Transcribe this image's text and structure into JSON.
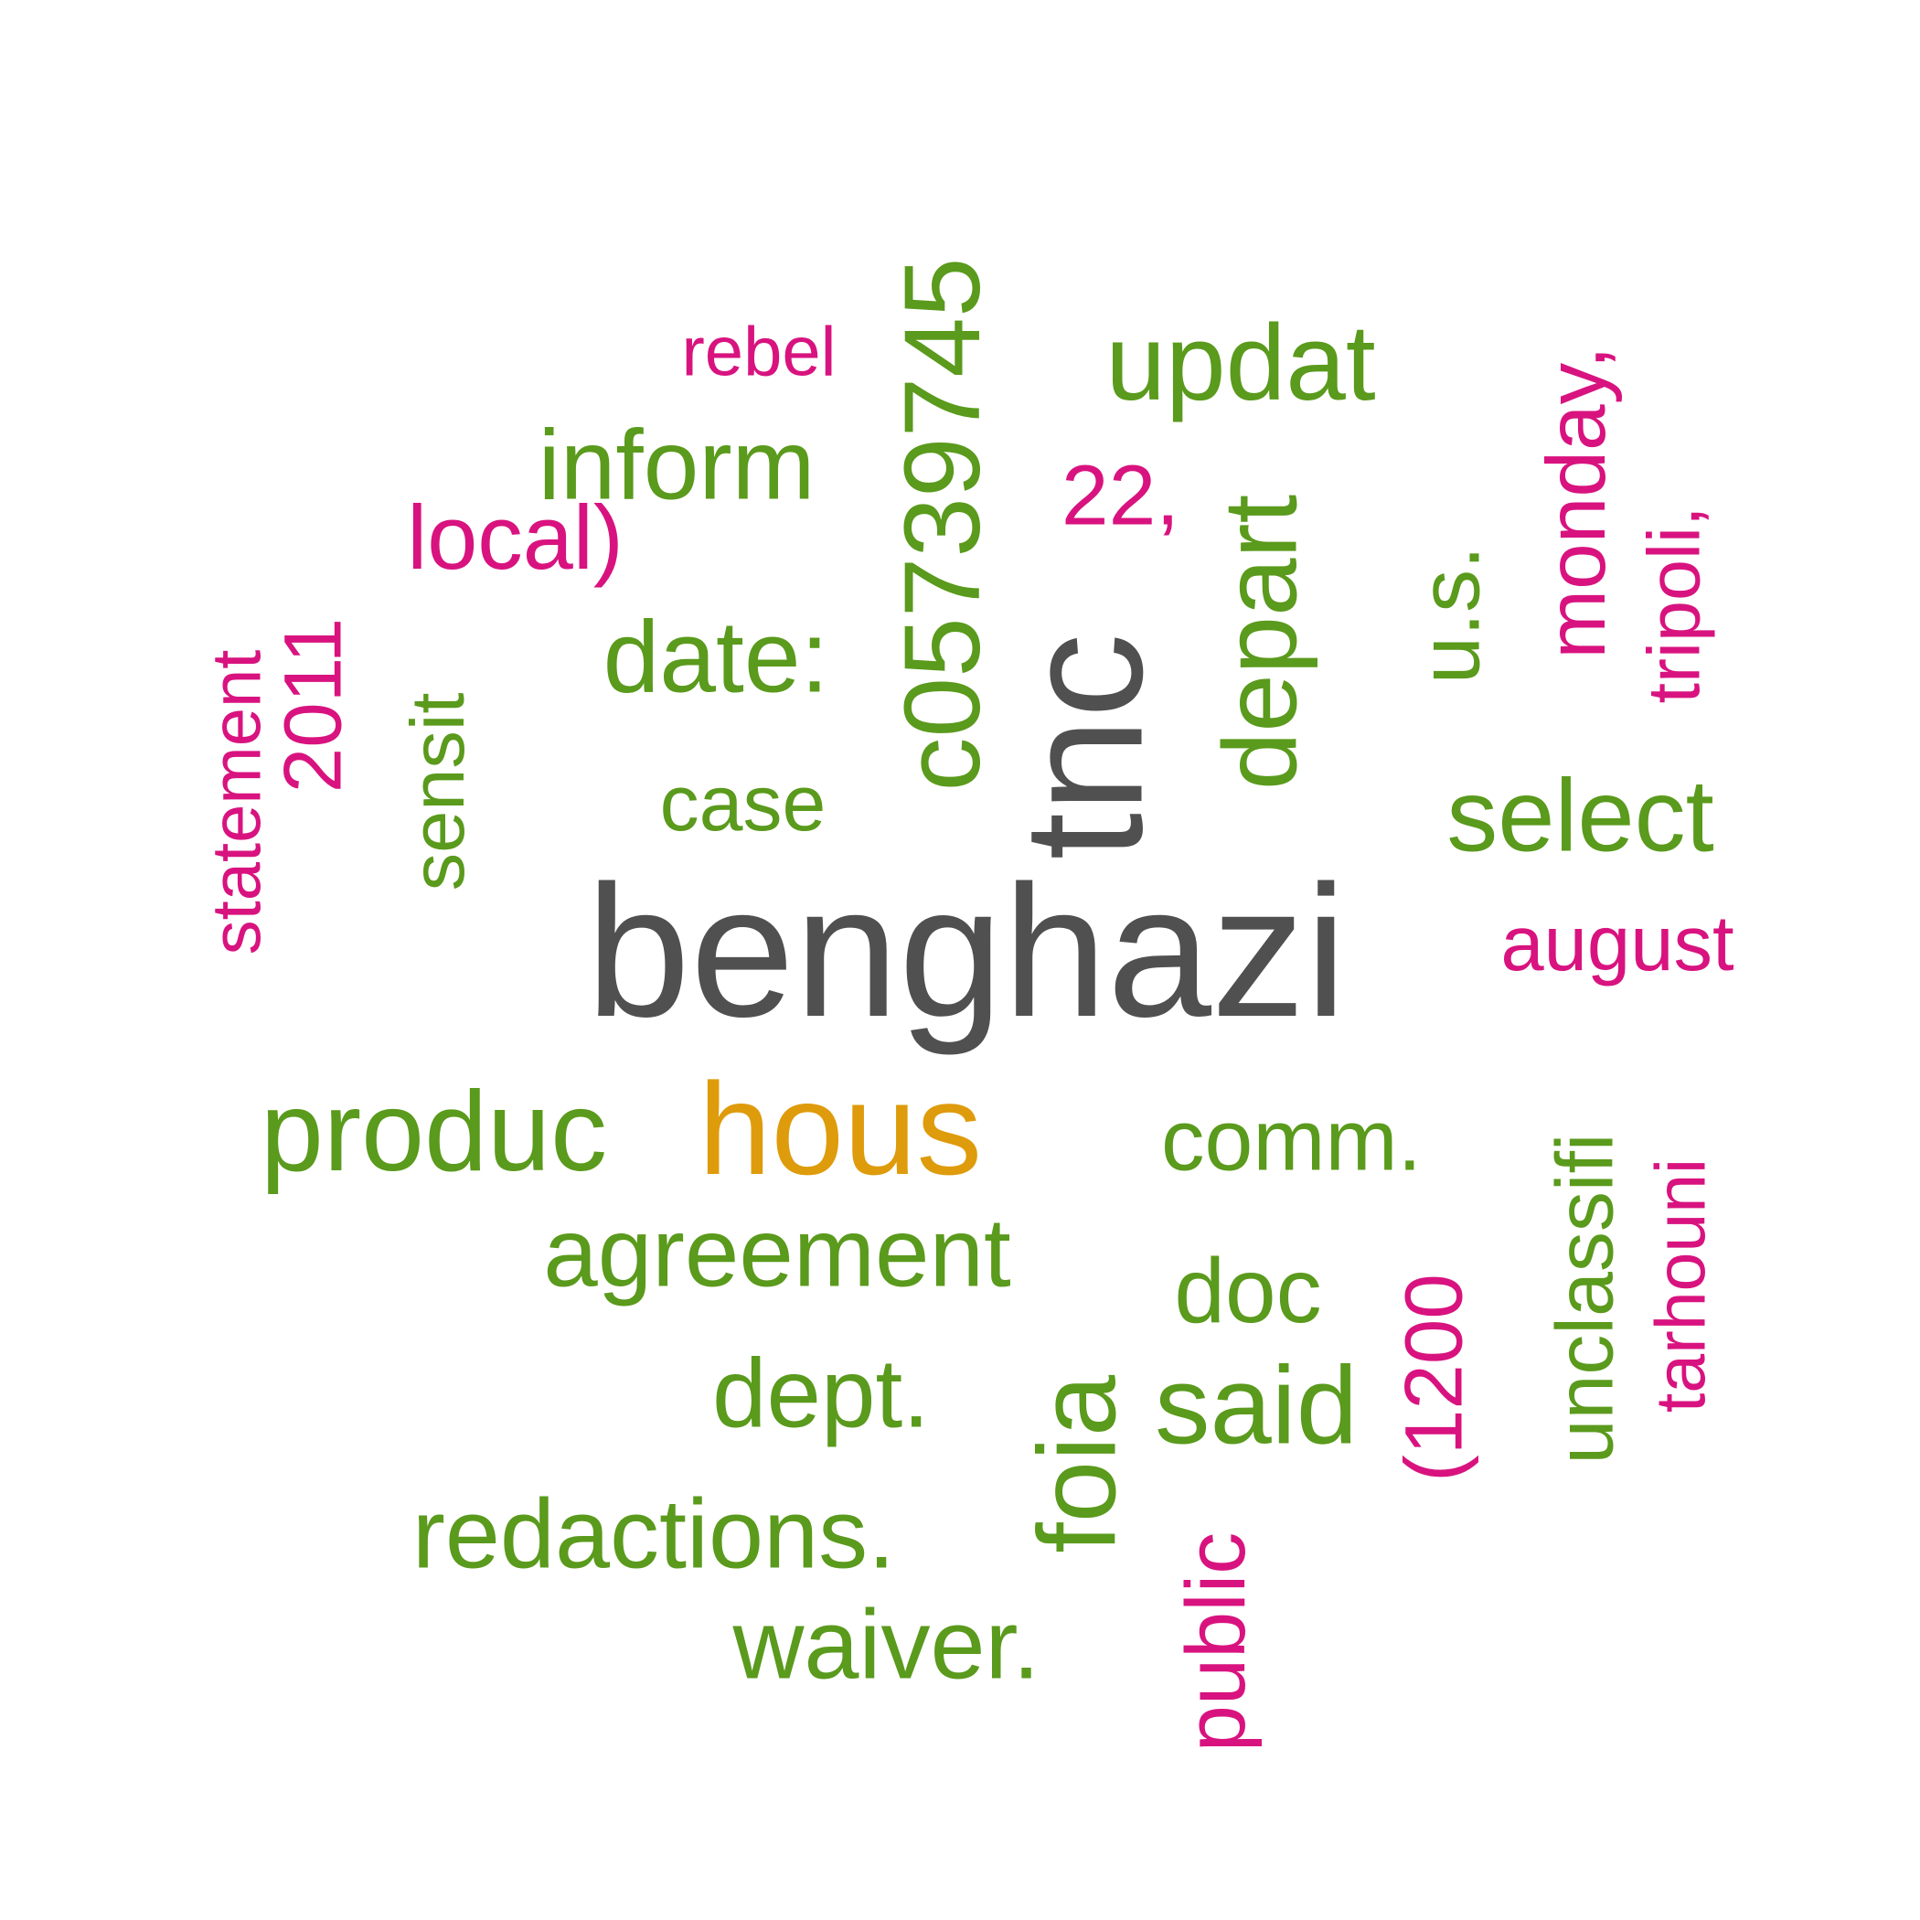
{
  "colors": {
    "gray": "#505050",
    "orange": "#de9b0b",
    "green": "#5a9a1c",
    "pink": "#d8137f"
  },
  "words": [
    {
      "text": "benghazi",
      "color": "gray",
      "rotated": false
    },
    {
      "text": "tnc",
      "color": "gray",
      "rotated": true
    },
    {
      "text": "hous",
      "color": "orange",
      "rotated": false
    },
    {
      "text": "c05739745",
      "color": "green",
      "rotated": true
    },
    {
      "text": "updat",
      "color": "green",
      "rotated": false
    },
    {
      "text": "inform",
      "color": "green",
      "rotated": false
    },
    {
      "text": "date:",
      "color": "green",
      "rotated": false
    },
    {
      "text": "case",
      "color": "green",
      "rotated": false
    },
    {
      "text": "sensit",
      "color": "green",
      "rotated": true
    },
    {
      "text": "depart",
      "color": "green",
      "rotated": true
    },
    {
      "text": "u.s.",
      "color": "green",
      "rotated": true
    },
    {
      "text": "select",
      "color": "green",
      "rotated": false
    },
    {
      "text": "produc",
      "color": "green",
      "rotated": false
    },
    {
      "text": "comm.",
      "color": "green",
      "rotated": false
    },
    {
      "text": "agreement",
      "color": "green",
      "rotated": false
    },
    {
      "text": "doc",
      "color": "green",
      "rotated": false
    },
    {
      "text": "dept.",
      "color": "green",
      "rotated": false
    },
    {
      "text": "said",
      "color": "green",
      "rotated": false
    },
    {
      "text": "foia",
      "color": "green",
      "rotated": true
    },
    {
      "text": "redactions.",
      "color": "green",
      "rotated": false
    },
    {
      "text": "waiver.",
      "color": "green",
      "rotated": false
    },
    {
      "text": "unclassifi",
      "color": "green",
      "rotated": true
    },
    {
      "text": "rebel",
      "color": "pink",
      "rotated": false
    },
    {
      "text": "local)",
      "color": "pink",
      "rotated": false
    },
    {
      "text": "22,",
      "color": "pink",
      "rotated": false
    },
    {
      "text": "statement",
      "color": "pink",
      "rotated": true
    },
    {
      "text": "2011",
      "color": "pink",
      "rotated": true
    },
    {
      "text": "monday,",
      "color": "pink",
      "rotated": true
    },
    {
      "text": "tripoli,",
      "color": "pink",
      "rotated": true
    },
    {
      "text": "august",
      "color": "pink",
      "rotated": false
    },
    {
      "text": "(1200",
      "color": "pink",
      "rotated": true
    },
    {
      "text": "tarhouni",
      "color": "pink",
      "rotated": true
    },
    {
      "text": "public",
      "color": "pink",
      "rotated": true
    }
  ]
}
